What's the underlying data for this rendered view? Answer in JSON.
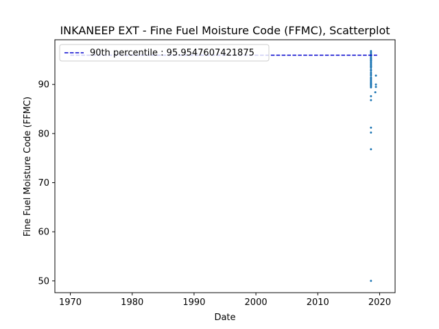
{
  "chart_data": {
    "type": "scatter",
    "title": "INKANEEP EXT - Fine Fuel Moisture Code (FFMC), Scatterplot",
    "xlabel": "Date",
    "ylabel": "Fine Fuel Moisture Code (FFMC)",
    "xlim": [
      1967.5,
      2022.5
    ],
    "ylim": [
      47.6,
      99.1
    ],
    "xticks": [
      1970,
      1980,
      1990,
      2000,
      2010,
      2020
    ],
    "yticks": [
      50,
      60,
      70,
      80,
      90
    ],
    "grid": false,
    "legend_position": "upper-left",
    "series": [
      {
        "type": "scatter",
        "color": "#1f77b4",
        "x": [
          2018.6,
          2018.6,
          2018.6,
          2018.6,
          2018.6,
          2018.6,
          2018.6,
          2018.6,
          2018.6,
          2018.6,
          2018.6,
          2018.6,
          2018.6,
          2018.6,
          2018.6,
          2018.6,
          2018.6,
          2018.6,
          2018.6,
          2018.6,
          2018.6,
          2018.6,
          2018.6,
          2018.6,
          2018.6,
          2018.6,
          2018.6,
          2018.6,
          2018.6,
          2018.6,
          2018.6,
          2018.6,
          2018.6,
          2018.6,
          2018.6,
          2018.6,
          2018.6,
          2018.6,
          2018.6,
          2018.6,
          2018.6,
          2018.6,
          2019.4,
          2019.4,
          2019.4,
          2019.3
        ],
        "y": [
          96.8,
          96.5,
          96.2,
          96.0,
          95.8,
          95.5,
          95.2,
          95.0,
          94.8,
          94.6,
          94.4,
          94.2,
          94.0,
          93.8,
          93.6,
          93.4,
          93.0,
          92.8,
          92.4,
          91.8,
          91.4,
          91.0,
          90.8,
          90.6,
          90.4,
          90.2,
          90.0,
          89.8,
          89.6,
          89.4,
          87.6,
          86.8,
          81.2,
          80.2,
          76.8,
          50.0,
          95.3,
          94.9,
          93.7,
          92.1,
          91.2,
          90.1,
          91.8,
          90.0,
          89.5,
          88.4
        ]
      },
      {
        "type": "line",
        "name": "90th percentile : 95.9547607421875",
        "color": "#0000cd",
        "style": "dashed",
        "x": [
          1970,
          2019.6
        ],
        "y": [
          95.9547607421875,
          95.9547607421875
        ]
      }
    ]
  }
}
